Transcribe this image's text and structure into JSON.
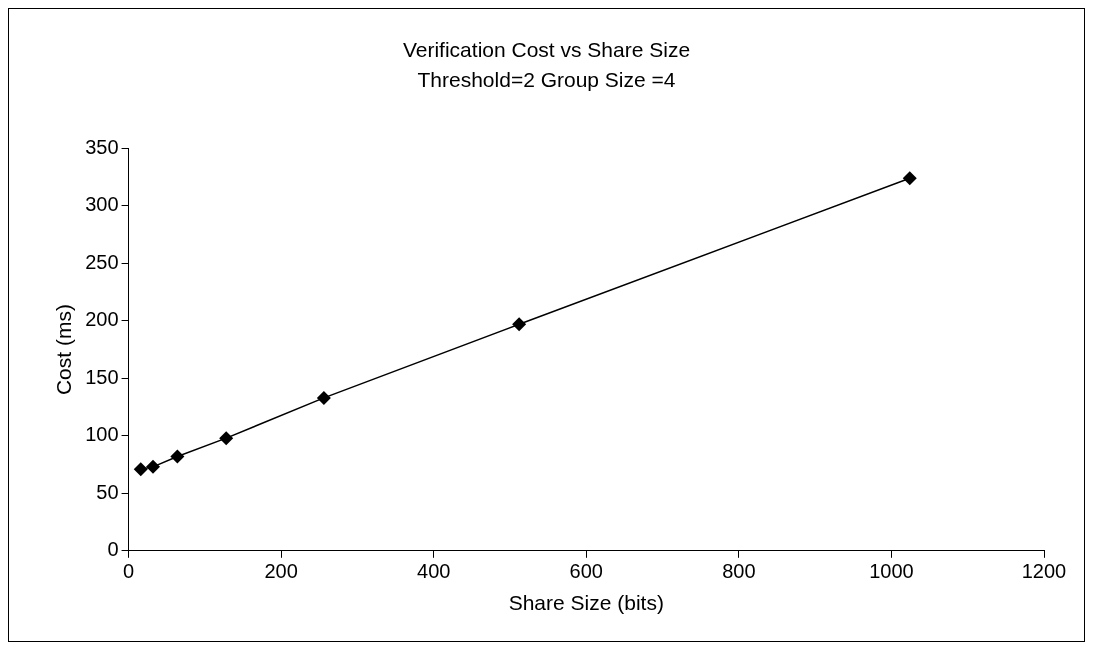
{
  "chart_data": {
    "type": "line",
    "title": "Verification Cost vs Share Size",
    "subtitle": "Threshold=2 Group Size =4",
    "xlabel": "Share Size (bits)",
    "ylabel": "Cost (ms)",
    "x": [
      16,
      32,
      64,
      128,
      256,
      512,
      1024
    ],
    "series": [
      {
        "color": "#000000",
        "values": [
          71,
          73,
          82,
          98,
          133,
          197,
          324
        ]
      }
    ],
    "xlim": [
      0,
      1200
    ],
    "xticks": [
      0,
      200,
      400,
      600,
      800,
      1000,
      1200
    ],
    "ylim": [
      0,
      350
    ],
    "yticks": [
      0,
      50,
      100,
      150,
      200,
      250,
      300,
      350
    ],
    "grid": false,
    "legend": false,
    "marker": "diamond",
    "line_style": "solid"
  }
}
